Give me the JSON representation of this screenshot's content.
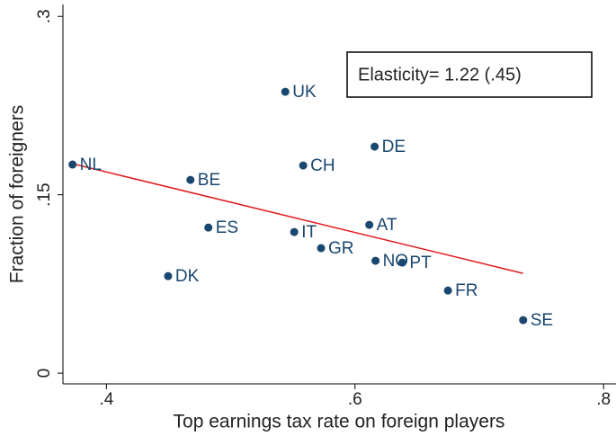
{
  "chart_data": {
    "type": "scatter",
    "x_label": "Top earnings tax rate on foreign players",
    "y_label": "Fraction of foreigners",
    "annotation": "Elasticity=  1.22 (.45)",
    "labels": [
      "NL",
      "BE",
      "UK",
      "CH",
      "DE",
      "AT",
      "ES",
      "IT",
      "GR",
      "NO",
      "PT",
      "DK",
      "FR",
      "SE"
    ],
    "x": [
      0.3727,
      0.4676,
      0.5439,
      0.5583,
      0.6158,
      0.6115,
      0.482,
      0.5511,
      0.5727,
      0.6165,
      0.6381,
      0.4496,
      0.6748,
      0.7353
    ],
    "y": [
      0.1754,
      0.1625,
      0.2366,
      0.1746,
      0.1905,
      0.1247,
      0.1224,
      0.1187,
      0.1051,
      0.0945,
      0.093,
      0.0816,
      0.0695,
      0.0446
    ],
    "color": "#1a476f",
    "fit_line": {
      "x": [
        0.3727,
        0.7353
      ],
      "y": [
        0.1761,
        0.0839
      ],
      "color": "#e41a1c"
    },
    "xlim": [
      0.365,
      0.81
    ],
    "ylim": [
      -0.009,
      0.31
    ],
    "xticks": [
      {
        "value": 0.4,
        "label": ".4"
      },
      {
        "value": 0.6,
        "label": ".6"
      },
      {
        "value": 0.8,
        "label": ".8"
      }
    ],
    "yticks": [
      0,
      {
        "value": 0.15,
        "label": ".15"
      },
      {
        "value": 0.3,
        "label": ".3"
      }
    ],
    "grid": false
  }
}
